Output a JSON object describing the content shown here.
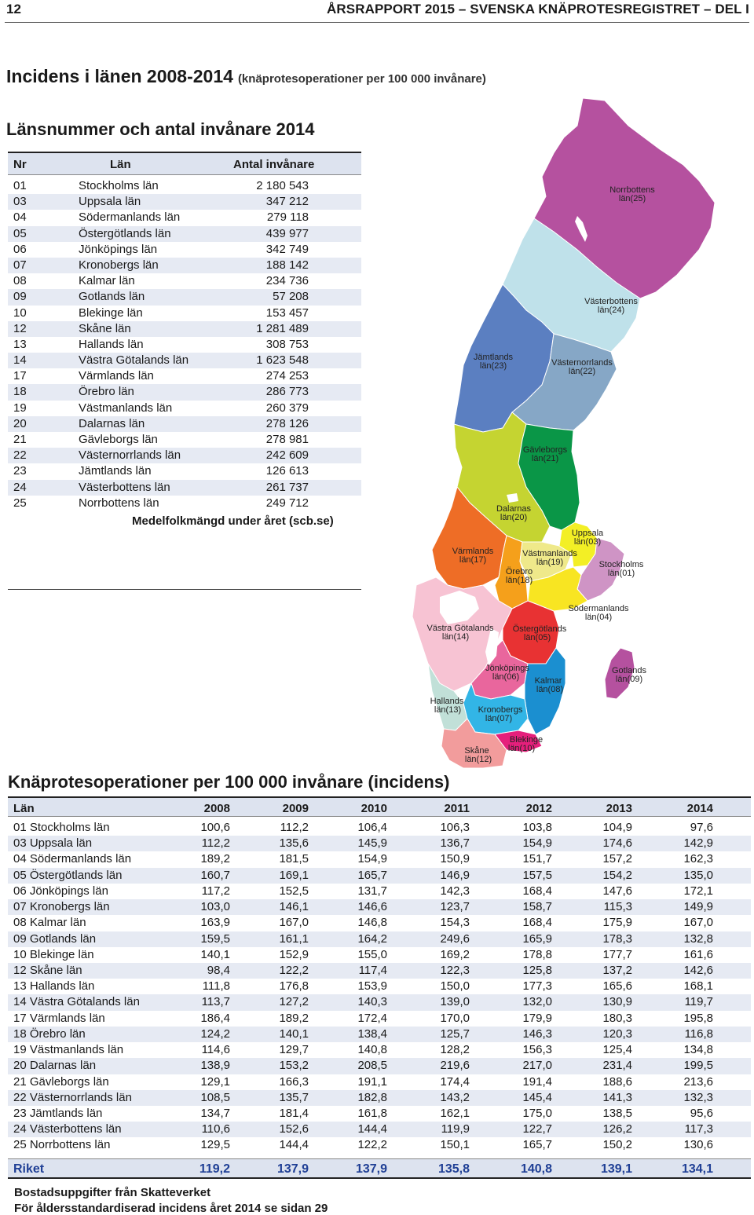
{
  "header": {
    "page_number": "12",
    "title": "ÅRSRAPPORT 2015 – SVENSKA KNÄPROTESREGISTRET – DEL I"
  },
  "section": {
    "title": "Incidens i länen 2008-2014",
    "subtitle": "(knäprotesoperationer per 100 000 invånare)"
  },
  "county_table": {
    "title": "Länsnummer och antal invånare 2014",
    "headers": {
      "nr": "Nr",
      "lan": "Län",
      "pop": "Antal invånare"
    },
    "rows": [
      {
        "nr": "01",
        "lan": "Stockholms län",
        "pop": "2 180 543"
      },
      {
        "nr": "03",
        "lan": "Uppsala län",
        "pop": "347 212"
      },
      {
        "nr": "04",
        "lan": "Södermanlands län",
        "pop": "279 118"
      },
      {
        "nr": "05",
        "lan": "Östergötlands län",
        "pop": "439 977"
      },
      {
        "nr": "06",
        "lan": "Jönköpings län",
        "pop": "342 749"
      },
      {
        "nr": "07",
        "lan": "Kronobergs län",
        "pop": "188 142"
      },
      {
        "nr": "08",
        "lan": "Kalmar län",
        "pop": "234 736"
      },
      {
        "nr": "09",
        "lan": "Gotlands län",
        "pop": "57 208"
      },
      {
        "nr": "10",
        "lan": "Blekinge län",
        "pop": "153 457"
      },
      {
        "nr": "12",
        "lan": "Skåne län",
        "pop": "1 281 489"
      },
      {
        "nr": "13",
        "lan": "Hallands län",
        "pop": "308 753"
      },
      {
        "nr": "14",
        "lan": "Västra Götalands län",
        "pop": "1 623 548"
      },
      {
        "nr": "17",
        "lan": "Värmlands län",
        "pop": "274 253"
      },
      {
        "nr": "18",
        "lan": "Örebro län",
        "pop": "286 773"
      },
      {
        "nr": "19",
        "lan": "Västmanlands län",
        "pop": "260 379"
      },
      {
        "nr": "20",
        "lan": "Dalarnas län",
        "pop": "278 126"
      },
      {
        "nr": "21",
        "lan": "Gävleborgs län",
        "pop": "278 981"
      },
      {
        "nr": "22",
        "lan": "Västernorrlands län",
        "pop": "242 609"
      },
      {
        "nr": "23",
        "lan": "Jämtlands län",
        "pop": "126 613"
      },
      {
        "nr": "24",
        "lan": "Västerbottens län",
        "pop": "261 737"
      },
      {
        "nr": "25",
        "lan": "Norrbottens län",
        "pop": "249 712"
      }
    ],
    "source": "Medelfolkmängd under året (scb.se)"
  },
  "map": {
    "labels": {
      "norrbotten": [
        "Norrbottens",
        "län(25)"
      ],
      "vasterbotten": [
        "Västerbottens",
        "län(24)"
      ],
      "jamtland": [
        "Jämtlands",
        "län(23)"
      ],
      "vasternorrland": [
        "Västernorrlands",
        "län(22)"
      ],
      "gavleborg": [
        "Gävleborgs",
        "län(21)"
      ],
      "dalarna": [
        "Dalarnas",
        "län(20)"
      ],
      "uppsala": [
        "Uppsala",
        "län(03)"
      ],
      "varmland": [
        "Värmlands",
        "län(17)"
      ],
      "vastmanland": [
        "Västmanlands",
        "län(19)"
      ],
      "orebro": [
        "Örebro",
        "län(18)"
      ],
      "stockholm": [
        "Stockholms",
        "län(01)"
      ],
      "sodermanland": [
        "Södermanlands",
        "län(04)"
      ],
      "vastra_gotaland": [
        "Västra Götalands",
        "län(14)"
      ],
      "ostergotland": [
        "Östergötlands",
        "län(05)"
      ],
      "jonkoping": [
        "Jönköpings",
        "län(06)"
      ],
      "kalmar": [
        "Kalmar",
        "län(08)"
      ],
      "gotland": [
        "Gotlands",
        "län(09)"
      ],
      "halland": [
        "Hallands",
        "län(13)"
      ],
      "kronoberg": [
        "Kronobergs",
        "län(07)"
      ],
      "blekinge": [
        "Blekinge",
        "län(10)"
      ],
      "skane": [
        "Skåne",
        "län(12)"
      ]
    },
    "colors": {
      "norrbotten": "#b5519f",
      "vasterbotten": "#bfe1ea",
      "jamtland": "#5b7fc1",
      "vasternorrland": "#86a7c6",
      "gavleborg": "#0a9647",
      "dalarna": "#c5d431",
      "uppsala": "#f3ef25",
      "varmland": "#ee6d26",
      "vastmanland": "#efe98a",
      "orebro": "#f5a01b",
      "stockholm": "#cf94c5",
      "sodermanland": "#f8e522",
      "vastra_gotaland": "#f7c3d3",
      "ostergotland": "#e83233",
      "jonkoping": "#e9669d",
      "kalmar": "#1b8fd0",
      "gotland": "#b5519f",
      "halland": "#c1e0d8",
      "kronoberg": "#32b5e6",
      "blekinge": "#e51f7c",
      "skane": "#f29c9c"
    }
  },
  "incidence_table": {
    "title": "Knäprotesoperationer per 100 000 invånare (incidens)",
    "headers": [
      "Län",
      "2008",
      "2009",
      "2010",
      "2011",
      "2012",
      "2013",
      "2014"
    ],
    "rows": [
      [
        "01 Stockholms län",
        "100,6",
        "112,2",
        "106,4",
        "106,3",
        "103,8",
        "104,9",
        "97,6"
      ],
      [
        "03 Uppsala län",
        "112,2",
        "135,6",
        "145,9",
        "136,7",
        "154,9",
        "174,6",
        "142,9"
      ],
      [
        "04 Södermanlands län",
        "189,2",
        "181,5",
        "154,9",
        "150,9",
        "151,7",
        "157,2",
        "162,3"
      ],
      [
        "05 Östergötlands län",
        "160,7",
        "169,1",
        "165,7",
        "146,9",
        "157,5",
        "154,2",
        "135,0"
      ],
      [
        "06 Jönköpings län",
        "117,2",
        "152,5",
        "131,7",
        "142,3",
        "168,4",
        "147,6",
        "172,1"
      ],
      [
        "07 Kronobergs län",
        "103,0",
        "146,1",
        "146,6",
        "123,7",
        "158,7",
        "115,3",
        "149,9"
      ],
      [
        "08 Kalmar län",
        "163,9",
        "167,0",
        "146,8",
        "154,3",
        "168,4",
        "175,9",
        "167,0"
      ],
      [
        "09 Gotlands län",
        "159,5",
        "161,1",
        "164,2",
        "249,6",
        "165,9",
        "178,3",
        "132,8"
      ],
      [
        "10 Blekinge län",
        "140,1",
        "152,9",
        "155,0",
        "169,2",
        "178,8",
        "177,7",
        "161,6"
      ],
      [
        "12 Skåne län",
        "98,4",
        "122,2",
        "117,4",
        "122,3",
        "125,8",
        "137,2",
        "142,6"
      ],
      [
        "13 Hallands län",
        "111,8",
        "176,8",
        "153,9",
        "150,0",
        "177,3",
        "165,6",
        "168,1"
      ],
      [
        "14 Västra Götalands län",
        "113,7",
        "127,2",
        "140,3",
        "139,0",
        "132,0",
        "130,9",
        "119,7"
      ],
      [
        "17 Värmlands län",
        "186,4",
        "189,2",
        "172,4",
        "170,0",
        "179,9",
        "180,3",
        "195,8"
      ],
      [
        "18 Örebro län",
        "124,2",
        "140,1",
        "138,4",
        "125,7",
        "146,3",
        "120,3",
        "116,8"
      ],
      [
        "19 Västmanlands län",
        "114,6",
        "129,7",
        "140,8",
        "128,2",
        "156,3",
        "125,4",
        "134,8"
      ],
      [
        "20 Dalarnas län",
        "138,9",
        "153,2",
        "208,5",
        "219,6",
        "217,0",
        "231,4",
        "199,5"
      ],
      [
        "21 Gävleborgs län",
        "129,1",
        "166,3",
        "191,1",
        "174,4",
        "191,4",
        "188,6",
        "213,6"
      ],
      [
        "22 Västernorrlands län",
        "108,5",
        "135,7",
        "182,8",
        "143,2",
        "145,4",
        "141,3",
        "132,3"
      ],
      [
        "23 Jämtlands län",
        "134,7",
        "181,4",
        "161,8",
        "162,1",
        "175,0",
        "138,5",
        "95,6"
      ],
      [
        "24 Västerbottens län",
        "110,6",
        "152,6",
        "144,4",
        "119,9",
        "122,7",
        "126,2",
        "117,3"
      ],
      [
        "25 Norrbottens län",
        "129,5",
        "144,4",
        "122,2",
        "150,1",
        "165,7",
        "150,2",
        "130,6"
      ]
    ],
    "total": [
      "Riket",
      "119,2",
      "137,9",
      "137,9",
      "135,8",
      "140,8",
      "139,1",
      "134,1"
    ]
  },
  "footer": {
    "line1": "Bostadsuppgifter från Skatteverket",
    "line2": "För åldersstandardiserad incidens året 2014 se sidan 29"
  }
}
